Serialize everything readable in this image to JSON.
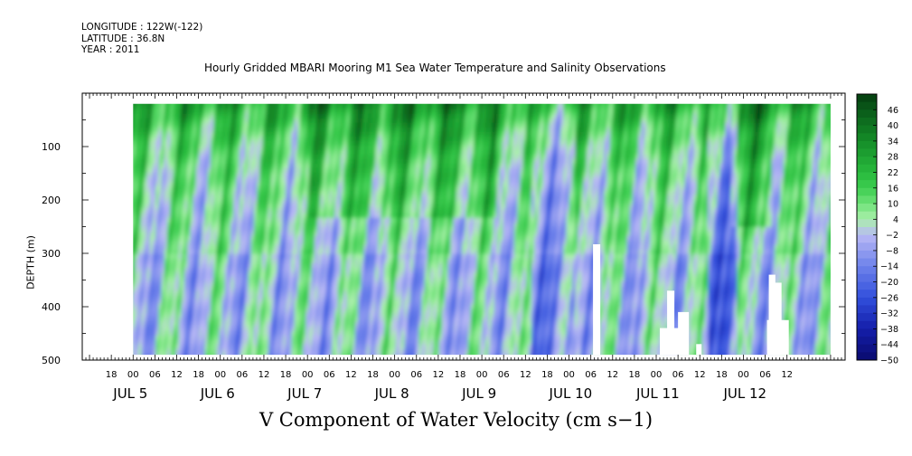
{
  "header": {
    "longitude": "LONGITUDE : 122W(-122)",
    "latitude": "LATITUDE : 36.8N",
    "year": "YEAR : 2011"
  },
  "colors": {
    "green_dark": "#0a5a1a",
    "green_mid": "#22cc44",
    "green_light": "#a8f0a8",
    "lavender": "#b8b8f4",
    "blue_mid": "#6a7aee",
    "blue_dark": "#14148a"
  },
  "chart_data": {
    "type": "heatmap",
    "title": "Hourly Gridded MBARI Mooring M1 Sea Water Temperature and Salinity Observations",
    "xlabel": "V Component of Water Velocity (cm s−1)",
    "ylabel": "DEPTH (m)",
    "x_range_hours_from_jul5_00": [
      -14,
      196
    ],
    "data_start_hour": 0,
    "data_end_hour": 192,
    "ylim": [
      500,
      0
    ],
    "data_depth_range": [
      20,
      490
    ],
    "y_ticks": [
      "100",
      "200",
      "300",
      "400",
      "500"
    ],
    "y_tick_values": [
      100,
      200,
      300,
      400,
      500
    ],
    "x_hour_tick_labels": [
      "18",
      "00",
      "06",
      "12",
      "18",
      "00",
      "06",
      "12",
      "18",
      "00",
      "06",
      "12",
      "18",
      "00",
      "06",
      "12",
      "18",
      "00",
      "06",
      "12",
      "18",
      "00",
      "06",
      "12",
      "18",
      "00",
      "06",
      "12",
      "18",
      "00",
      "06",
      "12"
    ],
    "x_hour_tick_values": [
      -6,
      0,
      6,
      12,
      18,
      24,
      30,
      36,
      42,
      48,
      54,
      60,
      66,
      72,
      78,
      84,
      90,
      96,
      102,
      108,
      114,
      120,
      126,
      132,
      138,
      144,
      150,
      156,
      162,
      168,
      174,
      180
    ],
    "day_labels": [
      "JUL 5",
      "JUL 6",
      "JUL 7",
      "JUL 8",
      "JUL 9",
      "JUL 10",
      "JUL 11",
      "JUL 12"
    ],
    "day_label_hours": [
      0,
      24,
      48,
      72,
      96,
      120,
      144,
      168
    ],
    "colorbar": {
      "levels": [
        "46",
        "40",
        "34",
        "28",
        "22",
        "16",
        "10",
        "4",
        "-2",
        "-8",
        "-14",
        "-20",
        "-26",
        "-32",
        "-38",
        "-44",
        "-50"
      ],
      "min": -50,
      "max": 52
    },
    "missing_regions_hour_depth": [
      {
        "h0": 126.6,
        "h1": 128.6,
        "d0": 283,
        "d1": 490
      },
      {
        "h0": 145.0,
        "h1": 150.5,
        "d0": 440,
        "d1": 490
      },
      {
        "h0": 147.0,
        "h1": 149.0,
        "d0": 370,
        "d1": 490
      },
      {
        "h0": 150.0,
        "h1": 153.0,
        "d0": 410,
        "d1": 490
      },
      {
        "h0": 155.0,
        "h1": 156.5,
        "d0": 470,
        "d1": 490
      },
      {
        "h0": 174.5,
        "h1": 180.5,
        "d0": 425,
        "d1": 490
      },
      {
        "h0": 175.0,
        "h1": 176.8,
        "d0": 340,
        "d1": 490
      },
      {
        "h0": 176.0,
        "h1": 178.5,
        "d0": 355,
        "d1": 490
      }
    ]
  }
}
